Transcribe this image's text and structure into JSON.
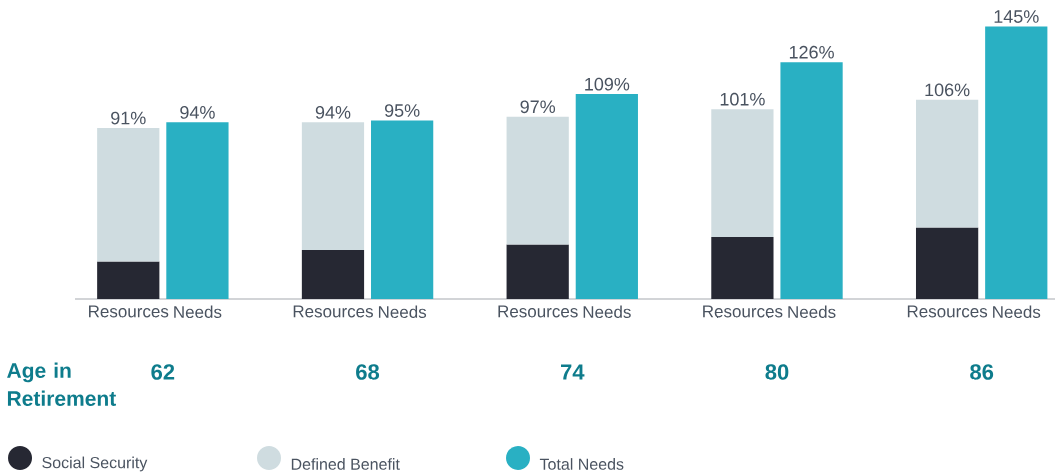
{
  "chart_data": {
    "type": "bar",
    "stacked": true,
    "categories": [
      "Resources",
      "Needs",
      "Resources",
      "Needs",
      "Resources",
      "Needs",
      "Resources",
      "Needs",
      "Resources",
      "Needs"
    ],
    "series": [
      {
        "name": "Social Security",
        "color": "#262833",
        "values": [
          20,
          null,
          26,
          null,
          29,
          null,
          33,
          null,
          38,
          null
        ]
      },
      {
        "name": "Defined Benefit",
        "color": "#cfdce0",
        "values": [
          71,
          null,
          68,
          null,
          68,
          null,
          68,
          null,
          68,
          null
        ]
      },
      {
        "name": "Total Needs",
        "color": "#29b0c3",
        "values": [
          null,
          94,
          null,
          95,
          null,
          109,
          null,
          126,
          null,
          145
        ],
        "value_labels": [
          null,
          "94%",
          null,
          "95%",
          null,
          "109%",
          null,
          "126%",
          null,
          "145%"
        ]
      }
    ],
    "totals": [
      "91%",
      null,
      "94%",
      null,
      "97%",
      null,
      "101%",
      null,
      "106%",
      null
    ],
    "xlabel": "Age in Retirement",
    "annotations": [
      "62",
      "68",
      "74",
      "80",
      "86"
    ],
    "tick_labels": "x",
    "legend": "bottom",
    "grid": false
  }
}
